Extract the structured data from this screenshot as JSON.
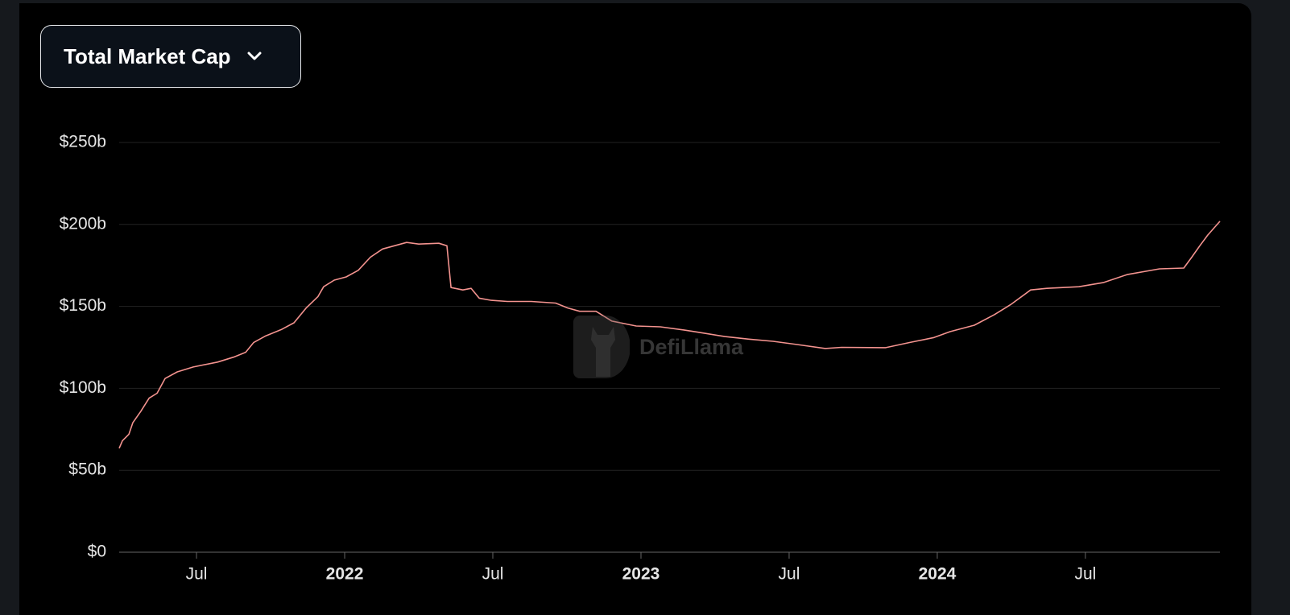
{
  "selector": {
    "label": "Total Market Cap"
  },
  "watermark": "DefiLlama",
  "chart_data": {
    "type": "line",
    "color": "#f4938f",
    "grid": true,
    "x": [
      2021.239,
      2021.25,
      2021.272,
      2021.285,
      2021.312,
      2021.34,
      2021.367,
      2021.394,
      2021.435,
      2021.489,
      2021.571,
      2021.625,
      2021.666,
      2021.693,
      2021.734,
      2021.788,
      2021.829,
      2021.87,
      2021.91,
      2021.929,
      2021.965,
      2022.005,
      2022.046,
      2022.087,
      2022.128,
      2022.168,
      2022.209,
      2022.25,
      2022.318,
      2022.345,
      2022.359,
      2022.399,
      2022.427,
      2022.454,
      2022.495,
      2022.549,
      2022.63,
      2022.712,
      2022.753,
      2022.793,
      2022.848,
      2022.902,
      2022.984,
      2023.065,
      2023.147,
      2023.201,
      2023.283,
      2023.364,
      2023.446,
      2023.527,
      2023.622,
      2023.677,
      2023.826,
      2023.908,
      2023.989,
      2024.043,
      2024.125,
      2024.193,
      2024.247,
      2024.315,
      2024.37,
      2024.478,
      2024.56,
      2024.641,
      2024.75,
      2024.832,
      2024.859,
      2024.886,
      2024.913,
      2024.954
    ],
    "values": [
      63.4,
      68,
      72,
      79,
      86,
      94,
      97,
      106,
      110,
      113,
      116,
      119,
      122,
      128,
      132,
      136,
      140,
      149,
      156,
      162,
      166,
      168,
      172,
      180,
      185,
      187,
      189,
      188,
      188.5,
      187,
      161.5,
      160,
      161,
      155,
      153.7,
      153,
      153,
      152,
      149,
      147,
      147,
      141,
      138,
      137.5,
      135.5,
      134,
      131.6,
      130,
      128.7,
      126.7,
      124.3,
      125,
      124.8,
      128,
      131,
      134.6,
      138.5,
      145,
      151,
      160,
      161,
      162,
      164.5,
      169.4,
      172.9,
      173.4,
      180,
      187,
      193.5,
      201.9
    ],
    "xlim": [
      2021.239,
      2024.954
    ],
    "xticks": [
      {
        "value": 2021.5,
        "label": "Jul"
      },
      2022,
      {
        "value": 2022.5,
        "label": "Jul"
      },
      2023,
      {
        "value": 2023.5,
        "label": "Jul"
      },
      2024,
      {
        "value": 2024.5,
        "label": "Jul"
      }
    ],
    "ylim": [
      0,
      250
    ],
    "yticks": [
      {
        "value": 0,
        "label": "$0"
      },
      {
        "value": 50,
        "label": "$50b"
      },
      {
        "value": 100,
        "label": "$100b"
      },
      {
        "value": 150,
        "label": "$150b"
      },
      {
        "value": 200,
        "label": "$200b"
      },
      {
        "value": 250,
        "label": "$250b"
      }
    ]
  }
}
